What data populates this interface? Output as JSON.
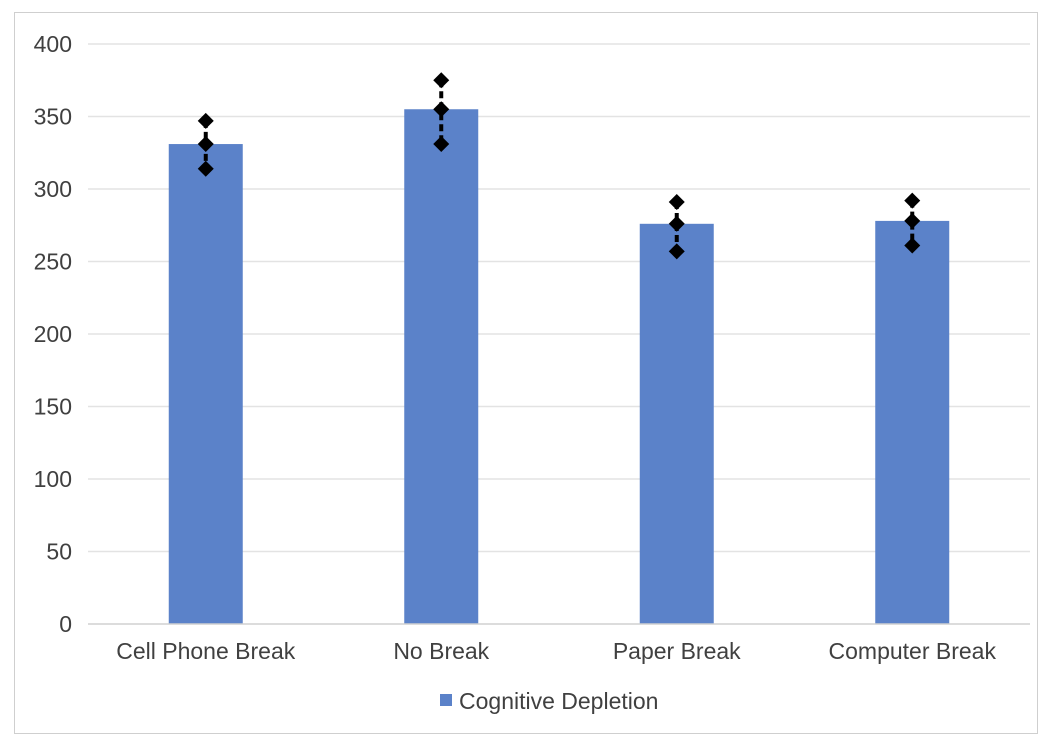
{
  "chart_data": {
    "type": "bar",
    "categories": [
      "Cell Phone Break",
      "No Break",
      "Paper Break",
      "Computer Break"
    ],
    "series": [
      {
        "name": "Cognitive Depletion",
        "values": [
          331,
          355,
          276,
          278
        ],
        "error_low": [
          314,
          331,
          257,
          261
        ],
        "error_high": [
          347,
          375,
          291,
          292
        ],
        "color": "#5b82c9"
      }
    ],
    "ylim": [
      0,
      400
    ],
    "yticks": [
      0,
      50,
      100,
      150,
      200,
      250,
      300,
      350,
      400
    ],
    "ytick_labels": [
      "0",
      "50",
      "100",
      "150",
      "200",
      "250",
      "300",
      "350",
      "400"
    ],
    "grid": true,
    "legend_position": "bottom",
    "title": "",
    "xlabel": "",
    "ylabel": ""
  }
}
